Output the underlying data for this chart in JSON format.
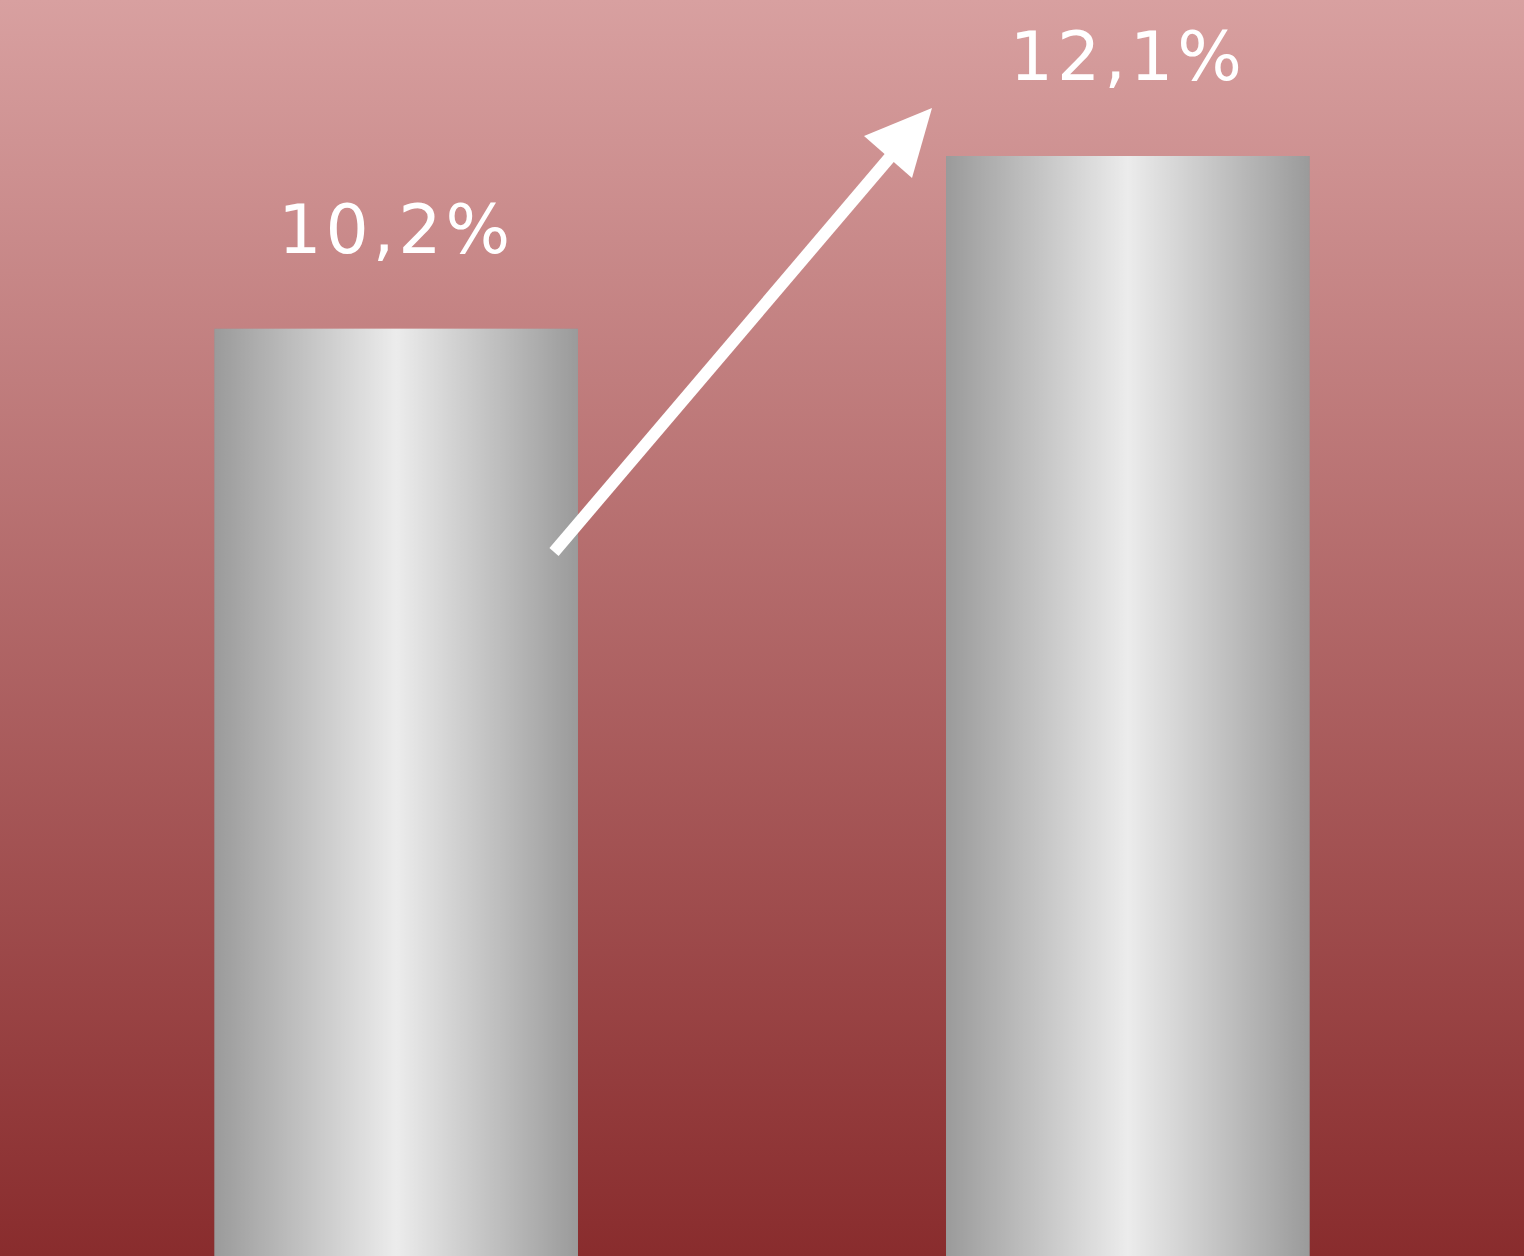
{
  "chart_data": {
    "type": "bar",
    "categories": [
      null,
      null
    ],
    "values": [
      10.2,
      12.1
    ],
    "color": "#c8c8c8",
    "data_labels": true,
    "value_labels": [
      "10,2%",
      "12,1%"
    ]
  }
}
